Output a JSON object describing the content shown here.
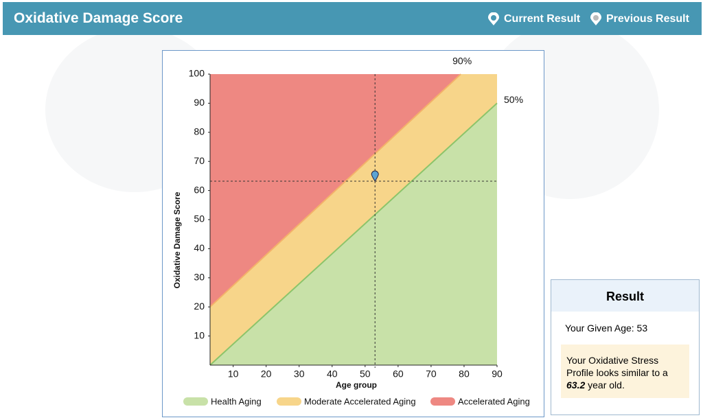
{
  "header": {
    "title": "Oxidative Damage Score",
    "legend": [
      "Current Result",
      "Previous Result"
    ]
  },
  "chart_data": {
    "type": "area",
    "x_label": "Age group",
    "y_label": "Oxidative Damage Score",
    "xlim": [
      3,
      90
    ],
    "xticks": [
      10,
      20,
      30,
      40,
      50,
      60,
      70,
      80,
      90
    ],
    "ylim": [
      0,
      100
    ],
    "yticks": [
      10,
      20,
      30,
      40,
      50,
      60,
      70,
      80,
      90,
      100
    ],
    "zones": [
      {
        "name": "Health Aging",
        "color": "#c8e1a8"
      },
      {
        "name": "Moderate Accelerated Aging",
        "color": "#f7d58a"
      },
      {
        "name": "Accelerated Aging",
        "color": "#ee8882"
      }
    ],
    "boundaries": [
      {
        "label": "50%",
        "color": "#8cc46a",
        "x": [
          3,
          90
        ],
        "values": [
          0,
          90
        ]
      },
      {
        "label": "90%",
        "color": "#f4b26a",
        "x": [
          3,
          79
        ],
        "values": [
          20,
          100
        ]
      }
    ],
    "point": {
      "x": 53,
      "y": 63.2,
      "color": "#5ba3d3"
    }
  },
  "result": {
    "title": "Result",
    "given_age": "Your Given Age: 53",
    "profile_before": "Your Oxidative Stress Profile looks similar to a",
    "profile_value": "63.2",
    "profile_after": "year old."
  }
}
